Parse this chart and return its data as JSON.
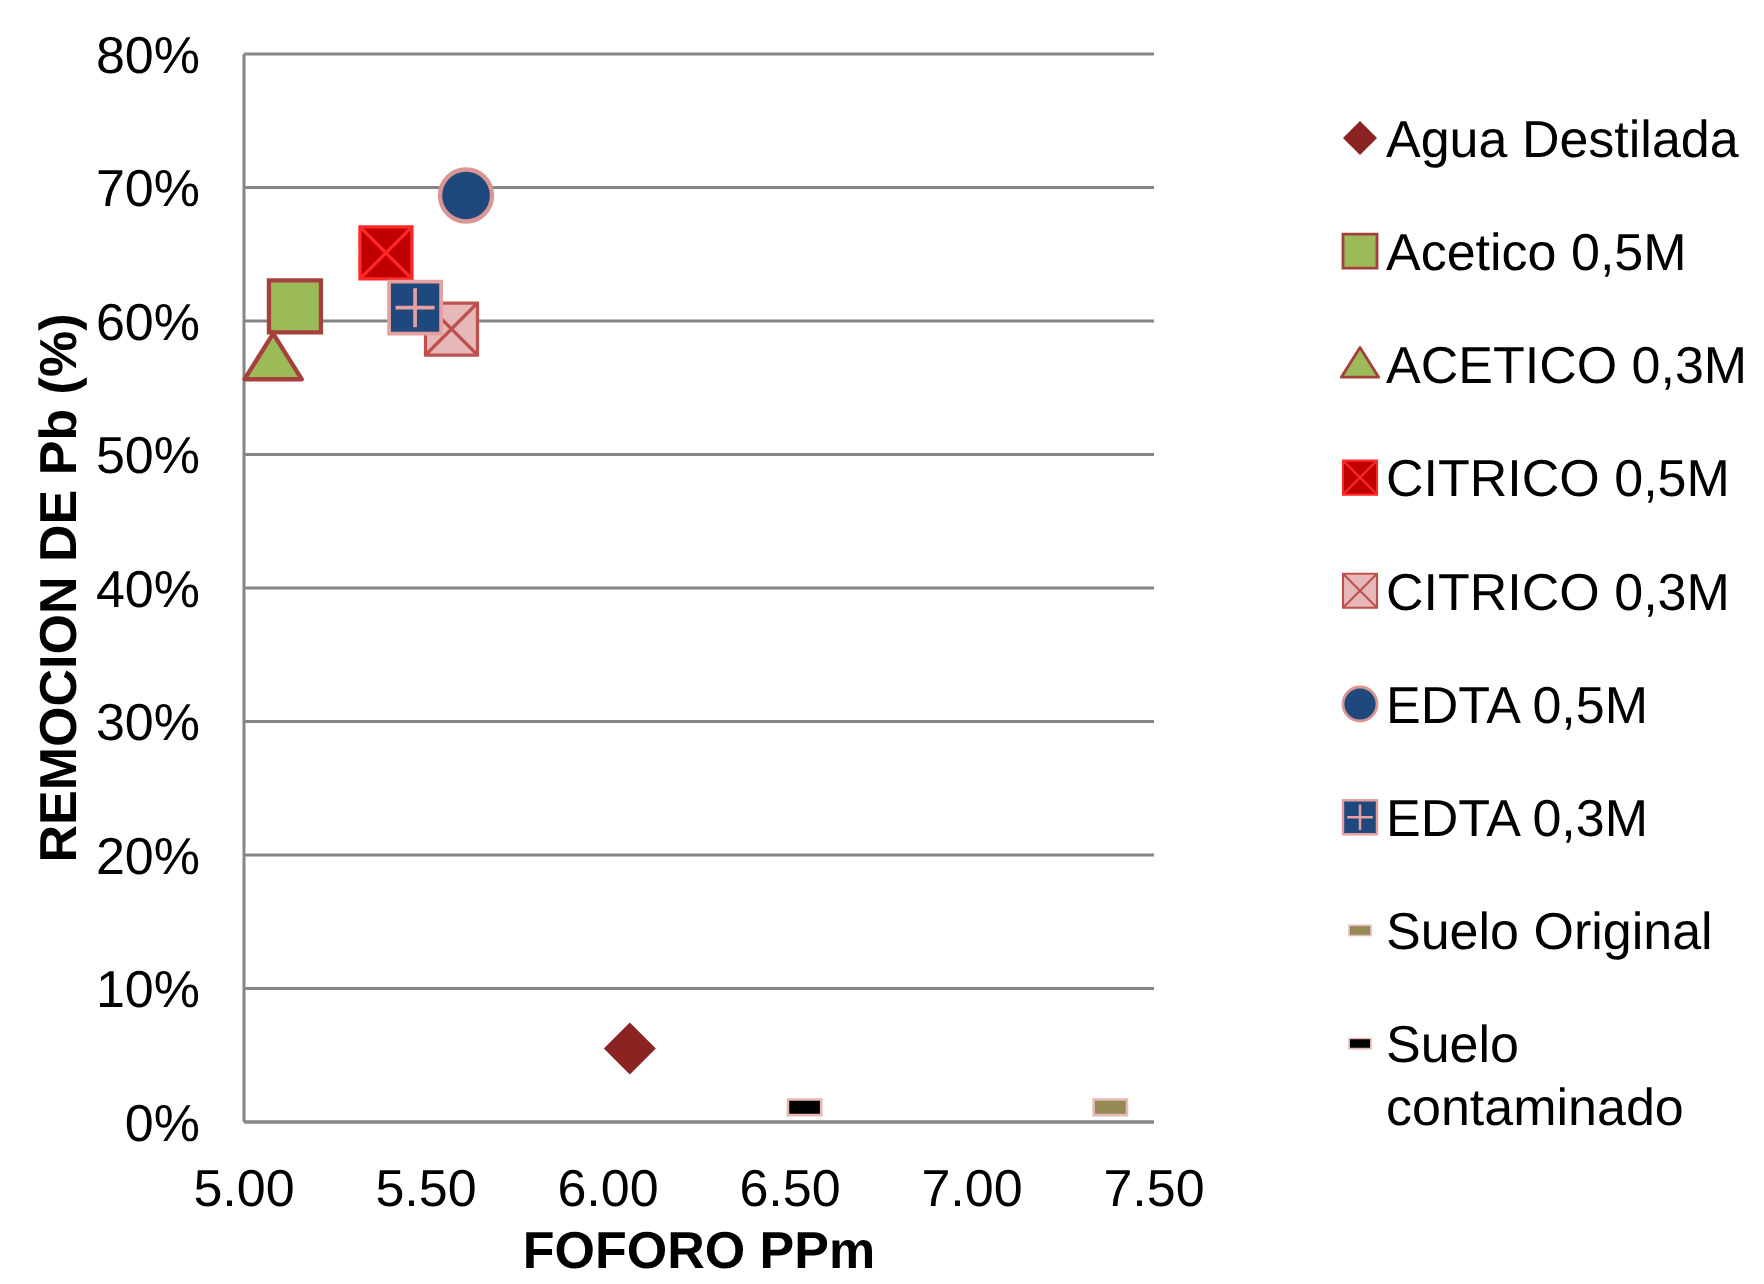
{
  "chart_data": {
    "type": "scatter",
    "xlabel": "FOFORO PPm",
    "ylabel": "REMOCION DE Pb (%)",
    "xlim": [
      5,
      7.5
    ],
    "xticks": [
      {
        "value": 5,
        "label": "5.00"
      },
      {
        "value": 5.5,
        "label": "5.50"
      },
      {
        "value": 6,
        "label": "6.00"
      },
      {
        "value": 6.5,
        "label": "6.50"
      },
      {
        "value": 7,
        "label": "7.00"
      },
      {
        "value": 7.5,
        "label": "7.50"
      }
    ],
    "ylim": [
      0,
      80
    ],
    "yticks": [
      {
        "value": 0,
        "label": "0%"
      },
      {
        "value": 10,
        "label": "10%"
      },
      {
        "value": 20,
        "label": "20%"
      },
      {
        "value": 30,
        "label": "30%"
      },
      {
        "value": 40,
        "label": "40%"
      },
      {
        "value": 50,
        "label": "50%"
      },
      {
        "value": 60,
        "label": "60%"
      },
      {
        "value": 70,
        "label": "70%"
      },
      {
        "value": 80,
        "label": "80%"
      }
    ],
    "grid": "y",
    "legend": "right",
    "series": [
      {
        "name": "Agua Destilada",
        "color": "#8b2323",
        "marker": "diamond",
        "x": [
          6.06
        ],
        "values": [
          5.5
        ]
      },
      {
        "name": "Acetico 0,5M",
        "color": "#9bbb59",
        "marker": "square",
        "x": [
          5.14
        ],
        "values": [
          61.1
        ]
      },
      {
        "name": "ACETICO 0,3M",
        "color": "#9bbb59",
        "marker": "triangle",
        "x": [
          5.08
        ],
        "values": [
          57.1
        ]
      },
      {
        "name": "CITRICO 0,5M",
        "color": "#c00000",
        "marker": "cross",
        "x": [
          5.39
        ],
        "values": [
          65.1
        ]
      },
      {
        "name": "CITRICO 0,3M",
        "color": "#e6b9b8",
        "marker": "cross",
        "x": [
          5.57
        ],
        "values": [
          59.4
        ]
      },
      {
        "name": "EDTA 0,5M",
        "color": "#1f497d",
        "marker": "circle",
        "x": [
          5.61
        ],
        "values": [
          69.4
        ]
      },
      {
        "name": "EDTA 0,3M",
        "color": "#1f497d",
        "marker": "plus",
        "x": [
          5.47
        ],
        "values": [
          61.0
        ]
      },
      {
        "name": "Suelo Original",
        "color": "#948a54",
        "x": [
          7.38
        ],
        "values": [
          1.1
        ]
      },
      {
        "name": "Suelo contaminado",
        "color": "#000000",
        "x": [
          6.54
        ],
        "values": [
          1.1
        ]
      }
    ]
  }
}
